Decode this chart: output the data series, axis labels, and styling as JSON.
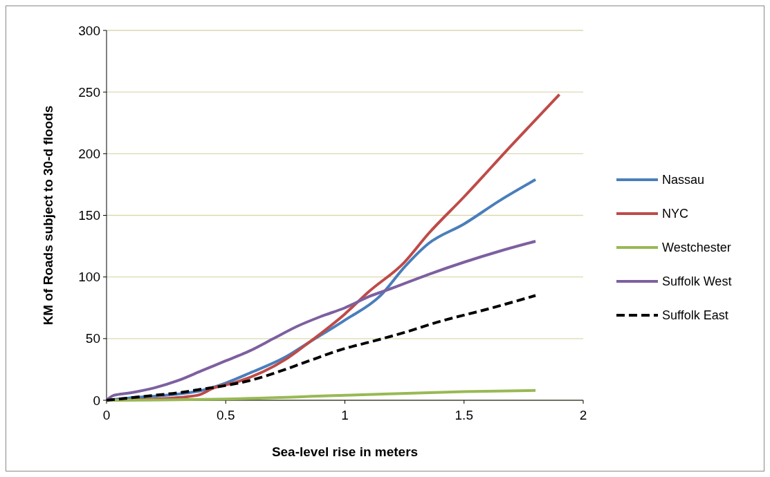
{
  "chart_data": {
    "type": "line",
    "xlabel": "Sea-level rise in meters",
    "ylabel": "KM of Roads subject to 30-d floods",
    "xlim": [
      0,
      2
    ],
    "ylim": [
      0,
      300
    ],
    "xticks": [
      0,
      0.5,
      1,
      1.5,
      2
    ],
    "yticks": [
      0,
      50,
      100,
      150,
      200,
      250,
      300
    ],
    "grid": "y",
    "legend": "right",
    "series": [
      {
        "name": "Nassau",
        "color": "#4a7ebb",
        "line_style": "solid",
        "x": [
          0,
          0.1,
          0.3,
          0.4,
          0.5,
          0.6,
          0.75,
          0.85,
          1.0,
          1.15,
          1.25,
          1.35,
          1.5,
          1.65,
          1.8
        ],
        "values": [
          0,
          2,
          5,
          8,
          14,
          22,
          35,
          47,
          65,
          85,
          108,
          127,
          143,
          162,
          179
        ]
      },
      {
        "name": "NYC",
        "color": "#be4b48",
        "line_style": "solid",
        "x": [
          0,
          0.2,
          0.38,
          0.45,
          0.55,
          0.75,
          0.85,
          1.0,
          1.1,
          1.25,
          1.35,
          1.5,
          1.7,
          1.9
        ],
        "values": [
          0,
          1,
          4,
          10,
          15,
          33,
          47,
          70,
          88,
          112,
          135,
          165,
          207,
          248
        ]
      },
      {
        "name": "Westchester",
        "color": "#98b954",
        "line_style": "solid",
        "x": [
          0,
          0.5,
          1.0,
          1.5,
          1.8
        ],
        "values": [
          0,
          1,
          4,
          7,
          8
        ]
      },
      {
        "name": "Suffolk West",
        "color": "#7d60a0",
        "line_style": "solid",
        "x": [
          0,
          0.03,
          0.1,
          0.2,
          0.3,
          0.4,
          0.5,
          0.6,
          0.7,
          0.8,
          0.9,
          1.0,
          1.1,
          1.2,
          1.35,
          1.5,
          1.65,
          1.8
        ],
        "values": [
          0,
          4,
          6,
          10,
          16,
          24,
          32,
          40,
          50,
          60,
          68,
          75,
          84,
          91,
          102,
          112,
          121,
          129
        ]
      },
      {
        "name": "Suffolk East",
        "color": "#000000",
        "line_style": "dashed",
        "x": [
          0,
          0.1,
          0.2,
          0.3,
          0.4,
          0.5,
          0.6,
          0.75,
          0.85,
          1.0,
          1.1,
          1.25,
          1.4,
          1.6,
          1.8
        ],
        "values": [
          0,
          2,
          4,
          6,
          9,
          12,
          16,
          25,
          32,
          42,
          47,
          55,
          64,
          74,
          85
        ]
      }
    ]
  }
}
